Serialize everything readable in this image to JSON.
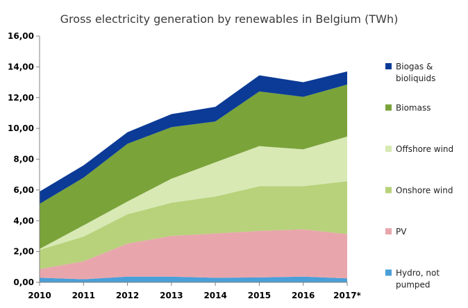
{
  "chart_data": {
    "type": "area",
    "stacked": true,
    "title": "Gross electricity generation by renewables in Belgium (TWh)",
    "xlabel": "",
    "ylabel": "",
    "x": [
      "2010",
      "2011",
      "2012",
      "2013",
      "2014",
      "2015",
      "2016",
      "2017*"
    ],
    "ylim": [
      0,
      16
    ],
    "yticks": [
      "0,00",
      "2,00",
      "4,00",
      "6,00",
      "8,00",
      "10,00",
      "12,00",
      "14,00",
      "16,00"
    ],
    "grid": false,
    "legend_position": "right",
    "series": [
      {
        "name": "Hydro, not pumped",
        "color": "#4a9fd8",
        "values": [
          0.3,
          0.2,
          0.37,
          0.37,
          0.3,
          0.32,
          0.37,
          0.26
        ]
      },
      {
        "name": "PV",
        "color": "#e8a6ac",
        "values": [
          0.56,
          1.17,
          2.15,
          2.65,
          2.88,
          3.02,
          3.08,
          2.87
        ]
      },
      {
        "name": "Onshore wind",
        "color": "#b7d27a",
        "values": [
          1.25,
          1.6,
          1.9,
          2.15,
          2.4,
          2.9,
          2.8,
          3.44
        ]
      },
      {
        "name": "Offshore wind",
        "color": "#d8e9b4",
        "values": [
          0.06,
          0.73,
          0.83,
          1.56,
          2.22,
          2.61,
          2.39,
          2.9
        ]
      },
      {
        "name": "Biomass",
        "color": "#7aa33a",
        "values": [
          2.93,
          3.1,
          3.75,
          3.35,
          2.65,
          3.55,
          3.41,
          3.38
        ]
      },
      {
        "name": "Biogas & bioliquids",
        "color": "#0b3b96",
        "values": [
          0.8,
          0.8,
          0.75,
          0.85,
          0.95,
          1.05,
          0.95,
          0.85
        ]
      }
    ],
    "legend_order": [
      "Biogas & bioliquids",
      "Biomass",
      "Offshore wind",
      "Onshore wind",
      "PV",
      "Hydro, not pumped"
    ],
    "legend_lines": {
      "Biogas & bioliquids": [
        "Biogas &",
        "bioliquids"
      ],
      "Biomass": [
        "Biomass"
      ],
      "Offshore wind": [
        "Offshore wind"
      ],
      "Onshore wind": [
        "Onshore wind"
      ],
      "PV": [
        "PV"
      ],
      "Hydro, not pumped": [
        "Hydro, not",
        "pumped"
      ]
    }
  }
}
